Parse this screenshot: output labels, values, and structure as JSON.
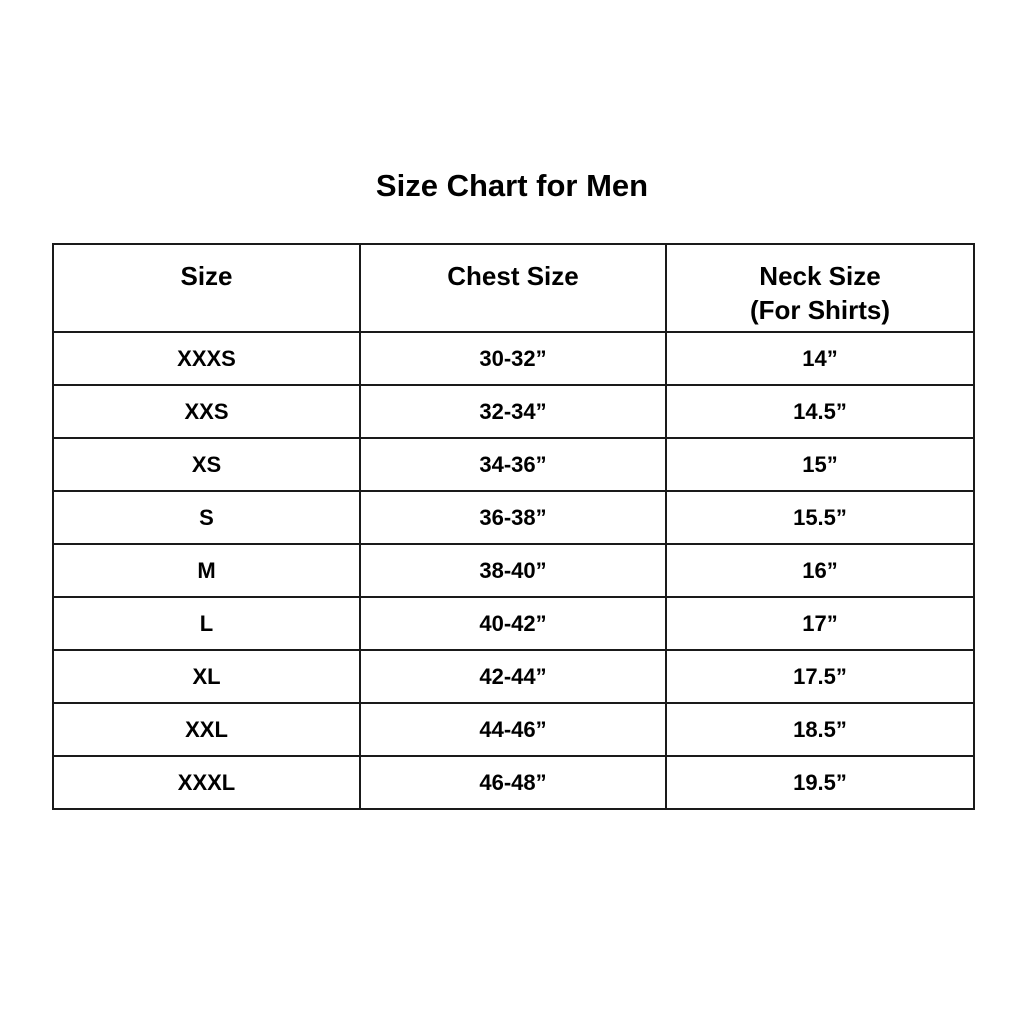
{
  "title": "Size Chart for Men",
  "headers": {
    "size": "Size",
    "chest": "Chest Size",
    "neck": "Neck Size",
    "neck_sub": "(For Shirts)"
  },
  "rows": [
    {
      "size": "XXXS",
      "chest": "30-32”",
      "neck": "14”"
    },
    {
      "size": "XXS",
      "chest": "32-34”",
      "neck": "14.5”"
    },
    {
      "size": "XS",
      "chest": "34-36”",
      "neck": "15”"
    },
    {
      "size": "S",
      "chest": "36-38”",
      "neck": "15.5”"
    },
    {
      "size": "M",
      "chest": "38-40”",
      "neck": "16”"
    },
    {
      "size": "L",
      "chest": "40-42”",
      "neck": "17”"
    },
    {
      "size": "XL",
      "chest": "42-44”",
      "neck": "17.5”"
    },
    {
      "size": "XXL",
      "chest": "44-46”",
      "neck": "18.5”"
    },
    {
      "size": "XXXL",
      "chest": "46-48”",
      "neck": "19.5”"
    }
  ]
}
